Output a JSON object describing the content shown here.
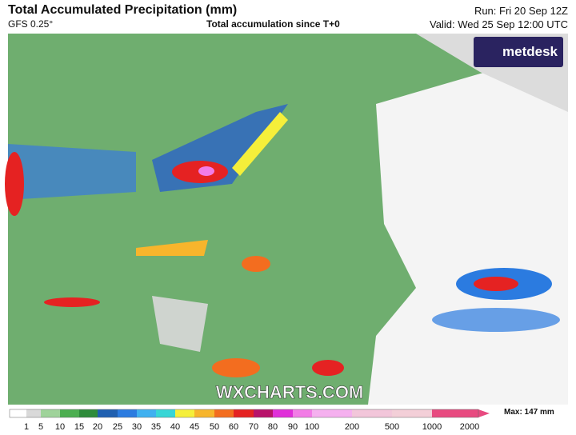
{
  "header": {
    "title": "Total Accumulated Precipitation (mm)",
    "model": "GFS 0.25°",
    "subtitle": "Total accumulation since T+0",
    "run": "Run: Fri 20 Sep 12Z",
    "valid": "Valid: Wed 25 Sep 12:00 UTC"
  },
  "logo": "metdesk",
  "watermark": "WXCHARTS.COM",
  "legend": {
    "labels": [
      "1",
      "5",
      "10",
      "15",
      "20",
      "25",
      "30",
      "35",
      "40",
      "45",
      "50",
      "60",
      "70",
      "80",
      "90",
      "100",
      "200",
      "500",
      "1000",
      "2000"
    ],
    "colors": [
      "#ffffff",
      "#d9d9d9",
      "#9fd39a",
      "#4caf50",
      "#2e8b3a",
      "#1f5fb0",
      "#2b7be0",
      "#3fb0f0",
      "#37d6d6",
      "#f5ef3a",
      "#f7b52c",
      "#f36d1f",
      "#e52222",
      "#b8126a",
      "#e02fd9",
      "#f27ce6",
      "#f5b0ef",
      "#f2c6da",
      "#f3cfd8",
      "#e84a80"
    ],
    "max": "Max: 147 mm"
  }
}
